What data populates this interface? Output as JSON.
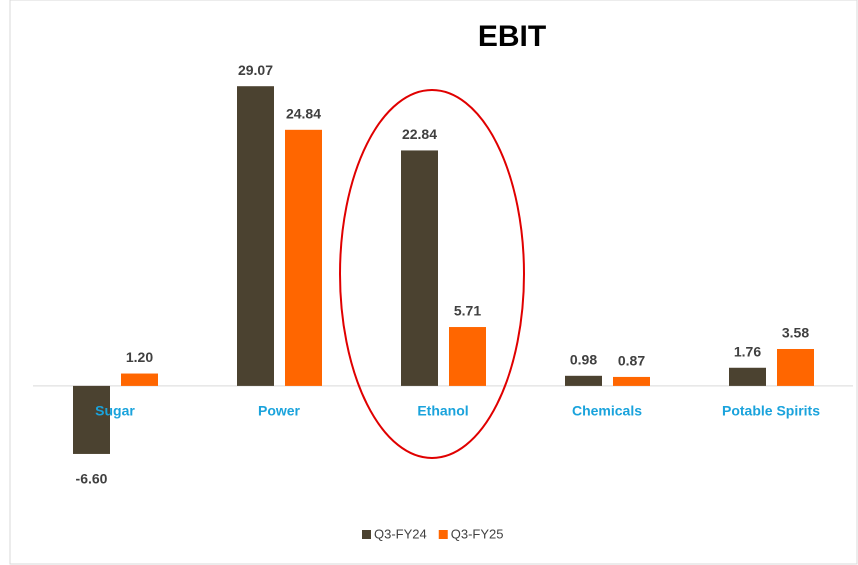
{
  "chart_data": {
    "type": "bar",
    "title": "EBIT",
    "categories": [
      "Sugar",
      "Power",
      "Ethanol",
      "Chemicals",
      "Potable Spirits"
    ],
    "series": [
      {
        "name": "Q3-FY24",
        "color": "#4b4230",
        "values": [
          -6.6,
          29.07,
          22.84,
          0.98,
          1.76
        ],
        "value_labels": [
          "-6.60",
          "29.07",
          "22.84",
          "0.98",
          "1.76"
        ]
      },
      {
        "name": "Q3-FY25",
        "color": "#ff6600",
        "values": [
          1.2,
          24.84,
          5.71,
          0.87,
          3.58
        ],
        "value_labels": [
          "1.20",
          "24.84",
          "5.71",
          "0.87",
          "3.58"
        ]
      }
    ],
    "ylim": [
      -10,
      32
    ],
    "legend": "bottom"
  }
}
